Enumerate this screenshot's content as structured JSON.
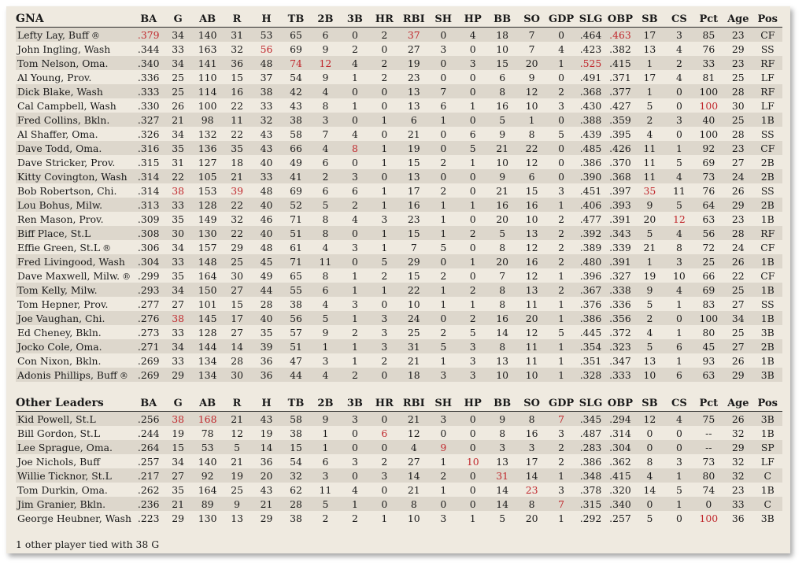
{
  "columns": [
    "BA",
    "G",
    "AB",
    "R",
    "H",
    "TB",
    "2B",
    "3B",
    "HR",
    "RBI",
    "SH",
    "HP",
    "BB",
    "SO",
    "GDP",
    "SLG",
    "OBP",
    "SB",
    "CS",
    "Pct",
    "Age",
    "Pos"
  ],
  "sections": [
    {
      "title": "GNA",
      "rows": [
        {
          "name": "Lefty Lay, Buff",
          "mark": "®",
          "vals": [
            ".379",
            "34",
            "140",
            "31",
            "53",
            "65",
            "6",
            "0",
            "2",
            "37",
            "0",
            "4",
            "18",
            "7",
            "0",
            ".464",
            ".463",
            "17",
            "3",
            "85",
            "23",
            "CF"
          ],
          "hl": [
            0,
            9,
            16
          ]
        },
        {
          "name": "John Ingling, Wash",
          "vals": [
            ".344",
            "33",
            "163",
            "32",
            "56",
            "69",
            "9",
            "2",
            "0",
            "27",
            "3",
            "0",
            "10",
            "7",
            "4",
            ".423",
            ".382",
            "13",
            "4",
            "76",
            "29",
            "SS"
          ],
          "hl": [
            4
          ]
        },
        {
          "name": "Tom Nelson, Oma.",
          "vals": [
            ".340",
            "34",
            "141",
            "36",
            "48",
            "74",
            "12",
            "4",
            "2",
            "19",
            "0",
            "3",
            "15",
            "20",
            "1",
            ".525",
            ".415",
            "1",
            "2",
            "33",
            "23",
            "RF"
          ],
          "hl": [
            5,
            6,
            15
          ]
        },
        {
          "name": "Al Young, Prov.",
          "vals": [
            ".336",
            "25",
            "110",
            "15",
            "37",
            "54",
            "9",
            "1",
            "2",
            "23",
            "0",
            "0",
            "6",
            "9",
            "0",
            ".491",
            ".371",
            "17",
            "4",
            "81",
            "25",
            "LF"
          ],
          "hl": []
        },
        {
          "name": "Dick Blake, Wash",
          "vals": [
            ".333",
            "25",
            "114",
            "16",
            "38",
            "42",
            "4",
            "0",
            "0",
            "13",
            "7",
            "0",
            "8",
            "12",
            "2",
            ".368",
            ".377",
            "1",
            "0",
            "100",
            "28",
            "RF"
          ],
          "hl": []
        },
        {
          "name": "Cal Campbell, Wash",
          "vals": [
            ".330",
            "26",
            "100",
            "22",
            "33",
            "43",
            "8",
            "1",
            "0",
            "13",
            "6",
            "1",
            "16",
            "10",
            "3",
            ".430",
            ".427",
            "5",
            "0",
            "100",
            "30",
            "LF"
          ],
          "hl": [
            19
          ]
        },
        {
          "name": "Fred Collins, Bkln.",
          "vals": [
            ".327",
            "21",
            "98",
            "11",
            "32",
            "38",
            "3",
            "0",
            "1",
            "6",
            "1",
            "0",
            "5",
            "1",
            "0",
            ".388",
            ".359",
            "2",
            "3",
            "40",
            "25",
            "1B"
          ],
          "hl": []
        },
        {
          "name": "Al Shaffer, Oma.",
          "vals": [
            ".326",
            "34",
            "132",
            "22",
            "43",
            "58",
            "7",
            "4",
            "0",
            "21",
            "0",
            "6",
            "9",
            "8",
            "5",
            ".439",
            ".395",
            "4",
            "0",
            "100",
            "28",
            "SS"
          ],
          "hl": []
        },
        {
          "name": "Dave Todd, Oma.",
          "vals": [
            ".316",
            "35",
            "136",
            "35",
            "43",
            "66",
            "4",
            "8",
            "1",
            "19",
            "0",
            "5",
            "21",
            "22",
            "0",
            ".485",
            ".426",
            "11",
            "1",
            "92",
            "23",
            "CF"
          ],
          "hl": [
            7
          ]
        },
        {
          "name": "Dave Stricker, Prov.",
          "vals": [
            ".315",
            "31",
            "127",
            "18",
            "40",
            "49",
            "6",
            "0",
            "1",
            "15",
            "2",
            "1",
            "10",
            "12",
            "0",
            ".386",
            ".370",
            "11",
            "5",
            "69",
            "27",
            "2B"
          ],
          "hl": []
        },
        {
          "name": "Kitty Covington, Wash",
          "vals": [
            ".314",
            "22",
            "105",
            "21",
            "33",
            "41",
            "2",
            "3",
            "0",
            "13",
            "0",
            "0",
            "9",
            "6",
            "0",
            ".390",
            ".368",
            "11",
            "4",
            "73",
            "24",
            "2B"
          ],
          "hl": []
        },
        {
          "name": "Bob Robertson, Chi.",
          "vals": [
            ".314",
            "38",
            "153",
            "39",
            "48",
            "69",
            "6",
            "6",
            "1",
            "17",
            "2",
            "0",
            "21",
            "15",
            "3",
            ".451",
            ".397",
            "35",
            "11",
            "76",
            "26",
            "SS"
          ],
          "hl": [
            1,
            3,
            17
          ]
        },
        {
          "name": "Lou Bohus, Milw.",
          "vals": [
            ".313",
            "33",
            "128",
            "22",
            "40",
            "52",
            "5",
            "2",
            "1",
            "16",
            "1",
            "1",
            "16",
            "16",
            "1",
            ".406",
            ".393",
            "9",
            "5",
            "64",
            "29",
            "2B"
          ],
          "hl": []
        },
        {
          "name": "Ren Mason, Prov.",
          "vals": [
            ".309",
            "35",
            "149",
            "32",
            "46",
            "71",
            "8",
            "4",
            "3",
            "23",
            "1",
            "0",
            "20",
            "10",
            "2",
            ".477",
            ".391",
            "20",
            "12",
            "63",
            "23",
            "1B"
          ],
          "hl": [
            18
          ]
        },
        {
          "name": "Biff Place, St.L",
          "vals": [
            ".308",
            "30",
            "130",
            "22",
            "40",
            "51",
            "8",
            "0",
            "1",
            "15",
            "1",
            "2",
            "5",
            "13",
            "2",
            ".392",
            ".343",
            "5",
            "4",
            "56",
            "28",
            "RF"
          ],
          "hl": []
        },
        {
          "name": "Effie Green, St.L",
          "mark": "®",
          "vals": [
            ".306",
            "34",
            "157",
            "29",
            "48",
            "61",
            "4",
            "3",
            "1",
            "7",
            "5",
            "0",
            "8",
            "12",
            "2",
            ".389",
            ".339",
            "21",
            "8",
            "72",
            "24",
            "CF"
          ],
          "hl": []
        },
        {
          "name": "Fred Livingood, Wash",
          "vals": [
            ".304",
            "33",
            "148",
            "25",
            "45",
            "71",
            "11",
            "0",
            "5",
            "29",
            "0",
            "1",
            "20",
            "16",
            "2",
            ".480",
            ".391",
            "1",
            "3",
            "25",
            "26",
            "1B"
          ],
          "hl": []
        },
        {
          "name": "Dave Maxwell, Milw.",
          "mark": "®",
          "vals": [
            ".299",
            "35",
            "164",
            "30",
            "49",
            "65",
            "8",
            "1",
            "2",
            "15",
            "2",
            "0",
            "7",
            "12",
            "1",
            ".396",
            ".327",
            "19",
            "10",
            "66",
            "22",
            "CF"
          ],
          "hl": []
        },
        {
          "name": "Tom Kelly, Milw.",
          "vals": [
            ".293",
            "34",
            "150",
            "27",
            "44",
            "55",
            "6",
            "1",
            "1",
            "22",
            "1",
            "2",
            "8",
            "13",
            "2",
            ".367",
            ".338",
            "9",
            "4",
            "69",
            "25",
            "1B"
          ],
          "hl": []
        },
        {
          "name": "Tom Hepner, Prov.",
          "vals": [
            ".277",
            "27",
            "101",
            "15",
            "28",
            "38",
            "4",
            "3",
            "0",
            "10",
            "1",
            "1",
            "8",
            "11",
            "1",
            ".376",
            ".336",
            "5",
            "1",
            "83",
            "27",
            "SS"
          ],
          "hl": []
        },
        {
          "name": "Joe Vaughan, Chi.",
          "vals": [
            ".276",
            "38",
            "145",
            "17",
            "40",
            "56",
            "5",
            "1",
            "3",
            "24",
            "0",
            "2",
            "16",
            "20",
            "1",
            ".386",
            ".356",
            "2",
            "0",
            "100",
            "34",
            "1B"
          ],
          "hl": [
            1
          ]
        },
        {
          "name": "Ed Cheney, Bkln.",
          "vals": [
            ".273",
            "33",
            "128",
            "27",
            "35",
            "57",
            "9",
            "2",
            "3",
            "25",
            "2",
            "5",
            "14",
            "12",
            "5",
            ".445",
            ".372",
            "4",
            "1",
            "80",
            "25",
            "3B"
          ],
          "hl": []
        },
        {
          "name": "Jocko Cole, Oma.",
          "vals": [
            ".271",
            "34",
            "144",
            "14",
            "39",
            "51",
            "1",
            "1",
            "3",
            "31",
            "5",
            "3",
            "8",
            "11",
            "1",
            ".354",
            ".323",
            "5",
            "6",
            "45",
            "27",
            "2B"
          ],
          "hl": []
        },
        {
          "name": "Con Nixon, Bkln.",
          "vals": [
            ".269",
            "33",
            "134",
            "28",
            "36",
            "47",
            "3",
            "1",
            "2",
            "21",
            "1",
            "3",
            "13",
            "11",
            "1",
            ".351",
            ".347",
            "13",
            "1",
            "93",
            "26",
            "1B"
          ],
          "hl": []
        },
        {
          "name": "Adonis Phillips, Buff",
          "mark": "®",
          "vals": [
            ".269",
            "29",
            "134",
            "30",
            "36",
            "44",
            "4",
            "2",
            "0",
            "18",
            "3",
            "3",
            "10",
            "10",
            "1",
            ".328",
            ".333",
            "10",
            "6",
            "63",
            "29",
            "3B"
          ],
          "hl": []
        }
      ]
    },
    {
      "title": "Other Leaders",
      "rows": [
        {
          "name": "Kid Powell, St.L",
          "vals": [
            ".256",
            "38",
            "168",
            "21",
            "43",
            "58",
            "9",
            "3",
            "0",
            "21",
            "3",
            "0",
            "9",
            "8",
            "7",
            ".345",
            ".294",
            "12",
            "4",
            "75",
            "26",
            "3B"
          ],
          "hl": [
            1,
            2,
            14
          ]
        },
        {
          "name": "Bill Gordon, St.L",
          "vals": [
            ".244",
            "19",
            "78",
            "12",
            "19",
            "38",
            "1",
            "0",
            "6",
            "12",
            "0",
            "0",
            "8",
            "16",
            "3",
            ".487",
            ".314",
            "0",
            "0",
            "--",
            "32",
            "1B"
          ],
          "hl": [
            8
          ]
        },
        {
          "name": "Lee Sprague, Oma.",
          "vals": [
            ".264",
            "15",
            "53",
            "5",
            "14",
            "15",
            "1",
            "0",
            "0",
            "4",
            "9",
            "0",
            "3",
            "3",
            "2",
            ".283",
            ".304",
            "0",
            "0",
            "--",
            "29",
            "SP"
          ],
          "hl": [
            10
          ]
        },
        {
          "name": "Joe Nichols, Buff",
          "vals": [
            ".257",
            "34",
            "140",
            "21",
            "36",
            "54",
            "6",
            "3",
            "2",
            "27",
            "1",
            "10",
            "13",
            "17",
            "2",
            ".386",
            ".362",
            "8",
            "3",
            "73",
            "32",
            "LF"
          ],
          "hl": [
            11
          ]
        },
        {
          "name": "Willie Ticknor, St.L",
          "vals": [
            ".217",
            "27",
            "92",
            "19",
            "20",
            "32",
            "3",
            "0",
            "3",
            "14",
            "2",
            "0",
            "31",
            "14",
            "1",
            ".348",
            ".415",
            "4",
            "1",
            "80",
            "32",
            "C"
          ],
          "hl": [
            12
          ]
        },
        {
          "name": "Tom Durkin, Oma.",
          "vals": [
            ".262",
            "35",
            "164",
            "25",
            "43",
            "62",
            "11",
            "4",
            "0",
            "21",
            "1",
            "0",
            "14",
            "23",
            "3",
            ".378",
            ".320",
            "14",
            "5",
            "74",
            "23",
            "1B"
          ],
          "hl": [
            13
          ]
        },
        {
          "name": "Jim Granier, Bkln.",
          "vals": [
            ".236",
            "21",
            "89",
            "9",
            "21",
            "28",
            "5",
            "1",
            "0",
            "8",
            "0",
            "0",
            "14",
            "8",
            "7",
            ".315",
            ".340",
            "0",
            "1",
            "0",
            "33",
            "C"
          ],
          "hl": [
            14
          ]
        },
        {
          "name": "George Heubner, Wash",
          "vals": [
            ".223",
            "29",
            "130",
            "13",
            "29",
            "38",
            "2",
            "2",
            "1",
            "10",
            "3",
            "1",
            "5",
            "20",
            "1",
            ".292",
            ".257",
            "5",
            "0",
            "100",
            "36",
            "3B"
          ],
          "hl": [
            19
          ]
        }
      ]
    }
  ],
  "footnote": "1 other player tied with 38 G",
  "colors": {
    "highlight": "#c0282d",
    "panel": "#efeae0",
    "stripe": "#ddd7cc"
  }
}
